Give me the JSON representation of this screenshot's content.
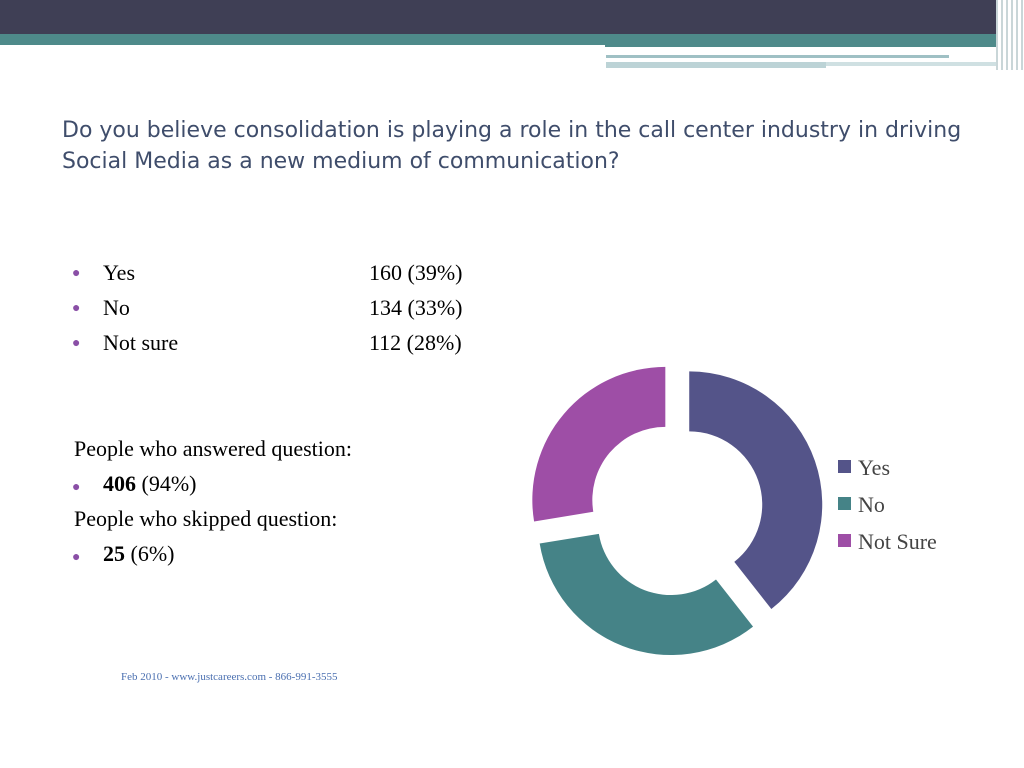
{
  "slide": {
    "title": "Do you believe consolidation is playing a role in the call center industry in driving Social Media as a new medium of communication?",
    "answers": [
      {
        "label": "Yes",
        "value": "160 (39%)"
      },
      {
        "label": "No",
        "value": "134 (33%)"
      },
      {
        "label": "Not sure",
        "value": "112 (28%)"
      }
    ],
    "answered_label": "People who answered question:",
    "answered_count": "406",
    "answered_pct": "(94%)",
    "skipped_label": "People who skipped question:",
    "skipped_count": "25",
    "skipped_pct": "(6%)",
    "footer": "Feb 2010 - www.justcareers.com - 866-991-3555",
    "colors": {
      "top_bar": "#3f3f55",
      "teal_band": "#4e8a8a",
      "title": "#3f4d6b",
      "bullet": "#8a4fa6"
    }
  },
  "chart_data": {
    "type": "pie",
    "style": "exploded-donut",
    "legend_position": "right",
    "series": [
      {
        "name": "Yes",
        "value": 160,
        "color": "#545489"
      },
      {
        "name": "No",
        "value": 134,
        "color": "#458387"
      },
      {
        "name": "Not Sure",
        "value": 112,
        "color": "#9e4ea6"
      }
    ]
  }
}
